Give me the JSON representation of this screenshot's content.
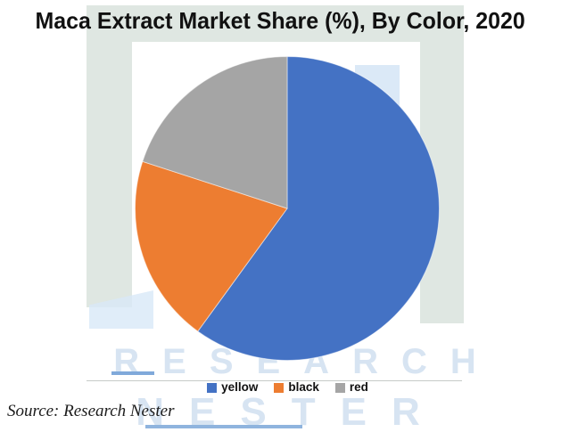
{
  "title": "Maca Extract Market Share (%), By Color, 2020",
  "source": {
    "label": "Source: Research Nester"
  },
  "watermark": {
    "line1": "RESEARCH",
    "line2": "NESTER"
  },
  "chart_data": {
    "type": "pie",
    "title": "Maca Extract Market Share (%), By Color, 2020",
    "categories": [
      "yellow",
      "black",
      "red"
    ],
    "values": [
      60,
      20,
      20
    ],
    "unit": "% market share",
    "colors": [
      "#4472c4",
      "#ed7d31",
      "#a5a5a5"
    ],
    "start_angle_deg": 0,
    "direction": "clockwise",
    "legend_position": "bottom",
    "data_labels": false
  },
  "brand_colors": {
    "logo_green": "#dfe7e2",
    "logo_light_blue": "#dbe9f7",
    "watermark_text": "#d7e4f2",
    "underline_blue": "#80a9da"
  }
}
